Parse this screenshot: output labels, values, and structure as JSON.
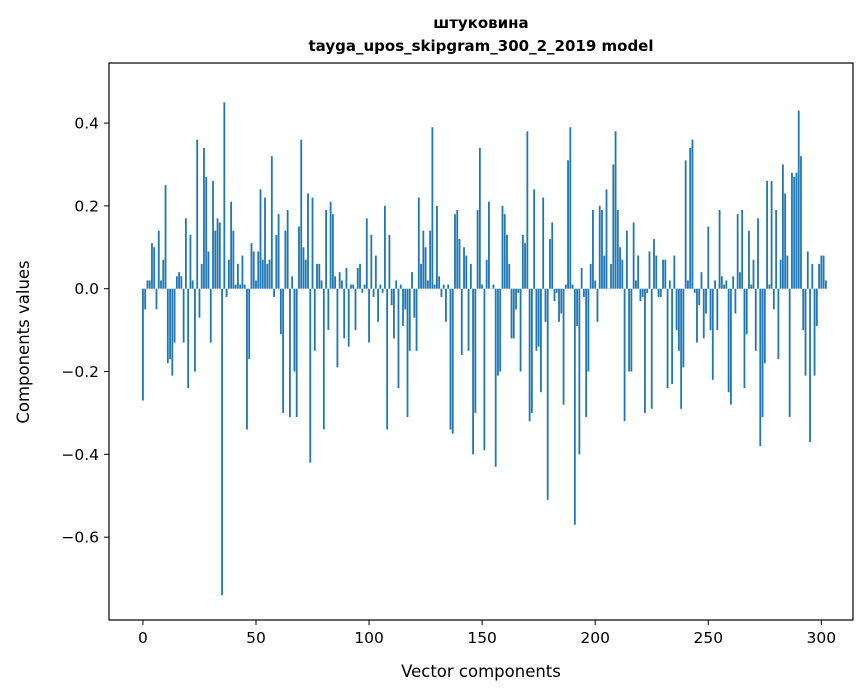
{
  "chart_data": {
    "type": "bar",
    "title": "штуковина",
    "subtitle": "tayga_upos_skipgram_300_2_2019 model",
    "xlabel": "Vector components",
    "ylabel": "Components values",
    "xlim": [
      -15,
      314
    ],
    "ylim": [
      -0.8,
      0.545
    ],
    "xticks": [
      0,
      50,
      100,
      150,
      200,
      250,
      300
    ],
    "yticks": [
      -0.6,
      -0.4,
      -0.2,
      0.0,
      0.2,
      0.4
    ],
    "ytick_labels": [
      "−0.6",
      "−0.4",
      "−0.2",
      "0.0",
      "0.2",
      "0.4"
    ],
    "bar_color": "#1f77b4",
    "grid": false,
    "legend": "none",
    "values": [
      -0.27,
      -0.05,
      0.02,
      0.02,
      0.11,
      0.1,
      -0.05,
      0.14,
      0.02,
      0.07,
      0.25,
      -0.18,
      -0.17,
      -0.21,
      -0.13,
      0.03,
      0.04,
      0.03,
      -0.13,
      0.17,
      -0.24,
      0.13,
      0.02,
      -0.2,
      0.36,
      -0.07,
      0.06,
      0.34,
      0.27,
      0.09,
      -0.13,
      0.26,
      0.14,
      0.17,
      0.16,
      -0.74,
      0.45,
      -0.02,
      0.07,
      0.21,
      0.14,
      0.01,
      0.06,
      0.01,
      0.08,
      0.01,
      -0.34,
      -0.17,
      0.11,
      0.09,
      0.02,
      0.09,
      0.24,
      0.07,
      0.22,
      0.06,
      0.07,
      0.32,
      -0.02,
      0.13,
      0.18,
      -0.11,
      -0.3,
      0.14,
      0.19,
      -0.31,
      0.03,
      -0.2,
      -0.31,
      0.15,
      0.36,
      0.1,
      0.07,
      0.23,
      -0.42,
      0.22,
      -0.15,
      0.06,
      0.06,
      0.02,
      -0.34,
      0.19,
      -0.1,
      0.21,
      0.18,
      0.03,
      -0.19,
      0.04,
      0.02,
      -0.12,
      0.05,
      -0.14,
      0.01,
      0.01,
      -0.1,
      0.05,
      0.06,
      -0.01,
      0.01,
      0.17,
      -0.13,
      0.13,
      -0.02,
      0.08,
      -0.08,
      0.01,
      -0.01,
      0.2,
      -0.34,
      0.13,
      -0.04,
      -0.12,
      0.02,
      -0.24,
      0.01,
      -0.09,
      -0.05,
      -0.31,
      -0.15,
      0.04,
      -0.07,
      -0.15,
      0.22,
      0.06,
      0.14,
      0.1,
      0.02,
      0.14,
      0.39,
      0.01,
      0.2,
      0.03,
      -0.02,
      0.01,
      -0.08,
      0.01,
      -0.34,
      -0.35,
      0.18,
      0.19,
      0.12,
      -0.16,
      0.1,
      0.08,
      -0.15,
      0.06,
      -0.4,
      -0.3,
      0.19,
      0.34,
      0.01,
      -0.39,
      0.07,
      0.21,
      0.0,
      0.01,
      -0.43,
      -0.21,
      -0.2,
      0.2,
      0.18,
      0.13,
      0.06,
      -0.12,
      -0.12,
      -0.05,
      -0.01,
      -0.2,
      0.13,
      0.11,
      0.38,
      -0.32,
      -0.3,
      0.24,
      -0.15,
      -0.14,
      -0.25,
      0.22,
      -0.08,
      -0.51,
      0.12,
      0.16,
      -0.03,
      -0.01,
      -0.08,
      -0.06,
      -0.28,
      0.01,
      0.31,
      0.39,
      0.01,
      -0.57,
      -0.09,
      -0.4,
      0.05,
      -0.02,
      -0.31,
      -0.2,
      0.06,
      0.19,
      0.02,
      -0.08,
      0.2,
      0.19,
      0.08,
      0.24,
      0.0,
      0.06,
      0.3,
      0.38,
      0.19,
      0.1,
      0.07,
      -0.32,
      0.14,
      -0.2,
      -0.2,
      0.16,
      0.02,
      0.08,
      -0.03,
      -0.02,
      -0.3,
      -0.01,
      0.09,
      -0.29,
      0.12,
      0.08,
      -0.02,
      -0.02,
      0.07,
      0.07,
      -0.24,
      0.02,
      -0.23,
      0.08,
      -0.1,
      -0.15,
      -0.29,
      -0.19,
      0.31,
      0.02,
      0.34,
      0.36,
      -0.01,
      -0.13,
      -0.04,
      0.04,
      -0.12,
      -0.06,
      0.15,
      -0.1,
      -0.22,
      0.02,
      -0.1,
      0.19,
      0.03,
      0.01,
      0.02,
      -0.25,
      -0.28,
      0.03,
      -0.06,
      0.18,
      0.04,
      0.19,
      -0.24,
      -0.11,
      0.14,
      0.01,
      0.07,
      -0.15,
      0.17,
      -0.38,
      -0.31,
      -0.18,
      0.26,
      0.01,
      0.26,
      -0.05,
      0.19,
      -0.17,
      0.07,
      0.3,
      0.23,
      0.08,
      -0.31,
      0.28,
      0.27,
      0.28,
      0.43,
      0.32,
      -0.1,
      -0.21,
      0.09,
      -0.37,
      0.06,
      -0.21,
      -0.09,
      0.06,
      0.08,
      0.08,
      0.02
    ]
  }
}
